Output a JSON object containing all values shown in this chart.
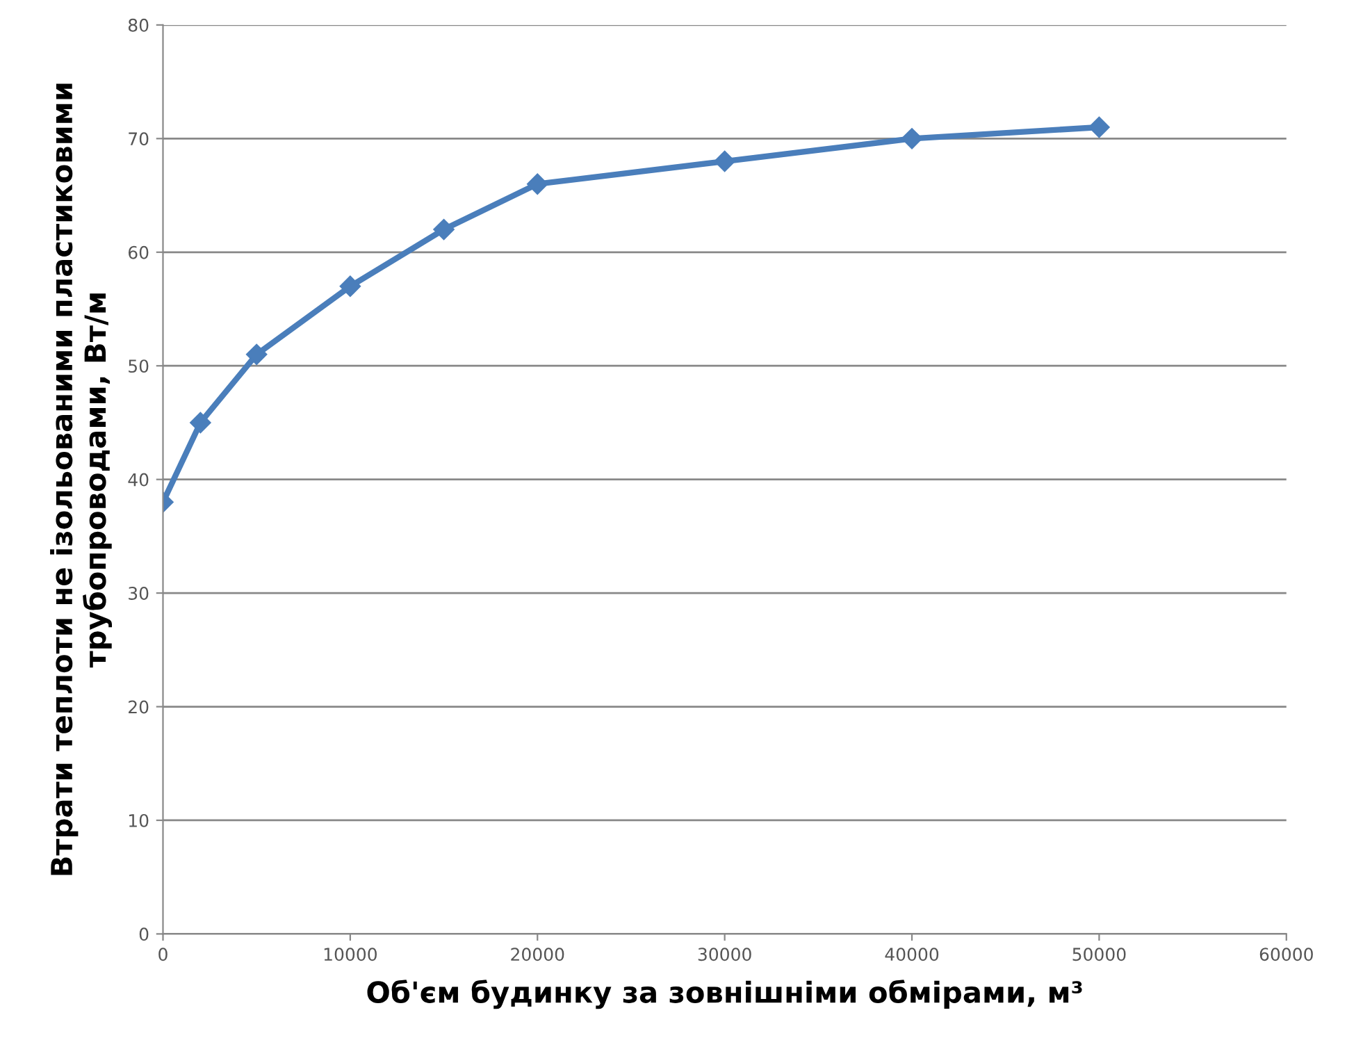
{
  "chart_data": {
    "type": "line",
    "xlabel": "Об'єм будинку за зовнішніми обмірами, м³",
    "ylabel": "Втрати теплоти не ізольованими пластиковими\nтрубопроводами, Вт/м",
    "x": [
      0,
      2000,
      5000,
      10000,
      15000,
      20000,
      30000,
      40000,
      50000
    ],
    "series": [
      {
        "color": "#4a7ebb",
        "values": [
          38,
          45,
          51,
          57,
          62,
          66,
          68,
          70,
          71
        ]
      }
    ],
    "xlim": [
      0,
      60000
    ],
    "xticks": [
      0,
      10000,
      20000,
      30000,
      40000,
      50000,
      60000
    ],
    "ylim": [
      0,
      80
    ],
    "yticks": [
      0,
      10,
      20,
      30,
      40,
      50,
      60,
      70,
      80
    ],
    "grid": "y",
    "marker": "diamond",
    "line_style": "solid"
  }
}
